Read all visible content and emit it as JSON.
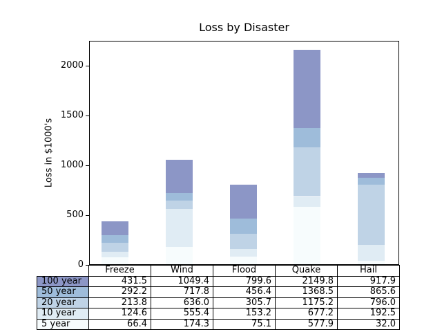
{
  "figure": {
    "background": "#ffffff",
    "axis_color": "#000000",
    "text_color": "#000000"
  },
  "chart_data": {
    "type": "bar",
    "stacked": true,
    "title": "Loss by Disaster",
    "xlabel": "",
    "ylabel": "Loss in $1000's",
    "categories": [
      "Freeze",
      "Wind",
      "Flood",
      "Quake",
      "Hail"
    ],
    "series": [
      {
        "name": "100 year",
        "color": "#8c96c6",
        "cumulative_values": [
          431.5,
          1049.4,
          799.6,
          2149.8,
          917.9
        ]
      },
      {
        "name": "50 year",
        "color": "#9ebcda",
        "cumulative_values": [
          292.2,
          717.8,
          456.4,
          1368.5,
          865.6
        ]
      },
      {
        "name": "20 year",
        "color": "#bfd3e6",
        "cumulative_values": [
          213.8,
          636.0,
          305.7,
          1175.2,
          796.0
        ]
      },
      {
        "name": "10 year",
        "color": "#e0ecf4",
        "cumulative_values": [
          124.6,
          555.4,
          153.2,
          677.2,
          192.5
        ]
      },
      {
        "name": "5 year",
        "color": "#f7fcfd",
        "cumulative_values": [
          66.4,
          174.3,
          75.1,
          577.9,
          32.0
        ]
      }
    ],
    "values_are_cumulative": true,
    "yticks": [
      0,
      500,
      1000,
      1500,
      2000
    ],
    "ylim": [
      0,
      2250
    ],
    "grid": false,
    "xticks": "none",
    "legend_position": "table-below-chart"
  }
}
